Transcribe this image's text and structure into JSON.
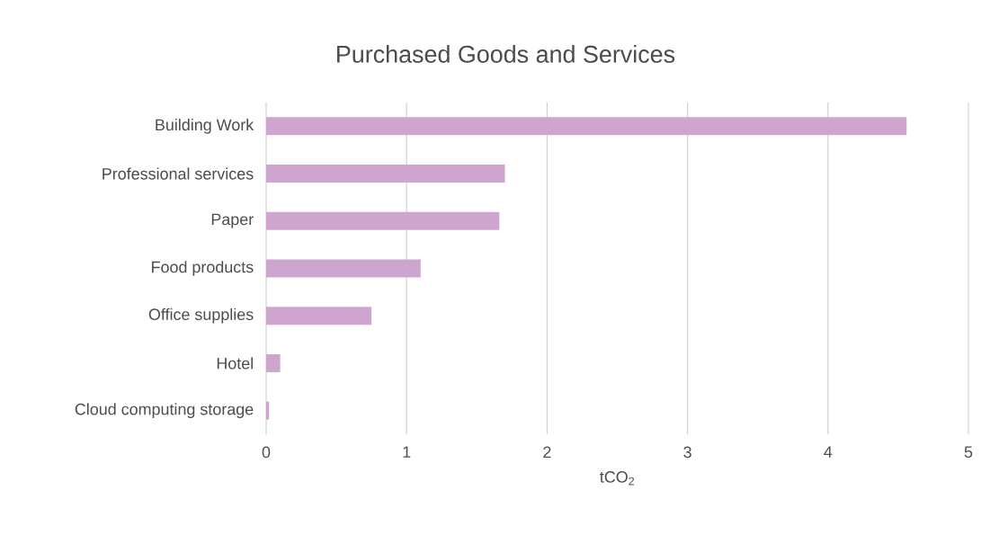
{
  "chart_data": {
    "type": "bar",
    "orientation": "horizontal",
    "title": "Purchased Goods and Services",
    "xlabel": "tCO$_{2}$",
    "categories": [
      "Building Work",
      "Professional services",
      "Paper",
      "Food products",
      "Office supplies",
      "Hotel",
      "Cloud computing storage"
    ],
    "values": [
      4.56,
      1.7,
      1.66,
      1.1,
      0.75,
      0.1,
      0.02
    ],
    "color": "#cda5cf",
    "xlim": [
      0,
      5
    ],
    "xticks": [
      0,
      1,
      2,
      3,
      4,
      5
    ],
    "grid": "x"
  }
}
